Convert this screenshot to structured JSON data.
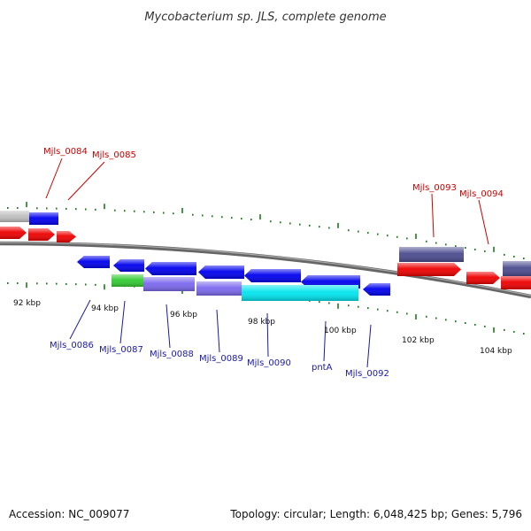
{
  "title": "Mycobacterium sp. JLS, complete genome",
  "footer": {
    "accession": "Accession: NC_009077",
    "summary": "Topology: circular; Length: 6,048,425 bp; Genes: 5,796"
  },
  "kbp_labels": [
    "92 kbp",
    "94 kbp",
    "96 kbp",
    "98 kbp",
    "100 kbp",
    "102 kbp",
    "104 kbp"
  ],
  "colors": {
    "backbone": "#808080",
    "forward_gene": "#0000ee",
    "forward_cds": "#ee0000",
    "purple_feature": "#7b68ee",
    "dark_feature": "#4b4b8f",
    "green_feature": "#33cc33",
    "cyan_feature": "#00e5ee",
    "tick": "#1a7a1a",
    "grey_feature": "#c0c0c0"
  },
  "top_labels": [
    "Mjls_0084",
    "Mjls_0085",
    "Mjls_0093",
    "Mjls_0094"
  ],
  "bottom_labels": [
    "Mjls_0086",
    "Mjls_0087",
    "Mjls_0088",
    "Mjls_0089",
    "Mjls_0090",
    "pntA",
    "Mjls_0092"
  ]
}
